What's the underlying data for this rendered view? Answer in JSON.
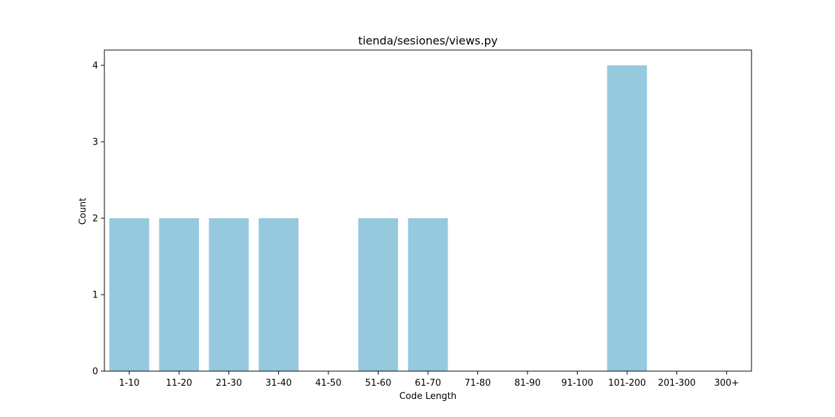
{
  "chart_data": {
    "type": "bar",
    "title": "tienda/sesiones/views.py",
    "xlabel": "Code Length",
    "ylabel": "Count",
    "categories": [
      "1-10",
      "11-20",
      "21-30",
      "31-40",
      "41-50",
      "51-60",
      "61-70",
      "71-80",
      "81-90",
      "91-100",
      "101-200",
      "201-300",
      "300+"
    ],
    "values": [
      2,
      2,
      2,
      2,
      0,
      2,
      2,
      0,
      0,
      0,
      4,
      0,
      0
    ],
    "yticks": [
      0,
      1,
      2,
      3,
      4
    ],
    "ylim": [
      0,
      4.2
    ],
    "grid": false,
    "bar_color": "#96c9de"
  }
}
